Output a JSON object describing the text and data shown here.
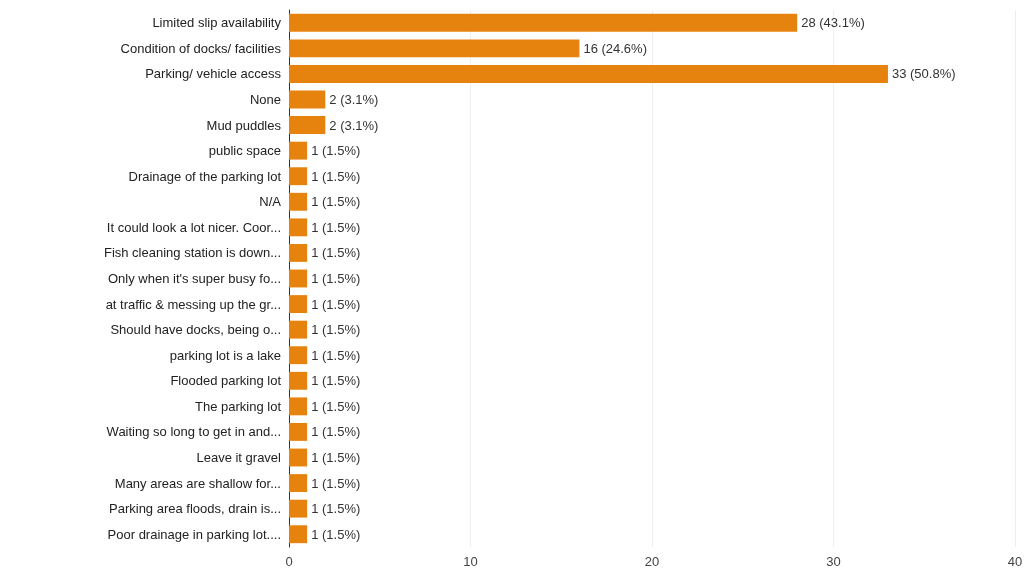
{
  "chart_data": {
    "type": "bar",
    "orientation": "horizontal",
    "categories": [
      "Limited slip availability",
      "Condition of docks/ facilities",
      "Parking/ vehicle access",
      "None",
      "Mud puddles",
      "public space",
      "Drainage of the parking lot",
      "N/A",
      "It could look a lot nicer. Coor...",
      "Fish cleaning station is down...",
      "Only when it's super busy fo...",
      "at traffic & messing up the gr...",
      "Should have docks, being o...",
      "parking lot is a lake",
      "Flooded parking lot",
      "The parking lot",
      "Waiting so long to get in and...",
      "Leave it gravel",
      "Many areas are shallow for...",
      "Parking area floods, drain is...",
      "Poor drainage in parking lot...."
    ],
    "values": [
      28,
      16,
      33,
      2,
      2,
      1,
      1,
      1,
      1,
      1,
      1,
      1,
      1,
      1,
      1,
      1,
      1,
      1,
      1,
      1,
      1
    ],
    "value_labels": [
      "28 (43.1%)",
      "16 (24.6%)",
      "33 (50.8%)",
      "2 (3.1%)",
      "2 (3.1%)",
      "1 (1.5%)",
      "1 (1.5%)",
      "1 (1.5%)",
      "1 (1.5%)",
      "1 (1.5%)",
      "1 (1.5%)",
      "1 (1.5%)",
      "1 (1.5%)",
      "1 (1.5%)",
      "1 (1.5%)",
      "1 (1.5%)",
      "1 (1.5%)",
      "1 (1.5%)",
      "1 (1.5%)",
      "1 (1.5%)",
      "1 (1.5%)"
    ],
    "color": "#e6820e",
    "xlim": [
      0,
      40
    ],
    "xticks": [
      0,
      10,
      20,
      30,
      40
    ],
    "grid": "x"
  }
}
